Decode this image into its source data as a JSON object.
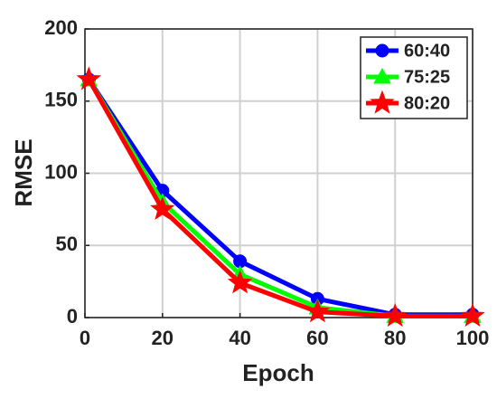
{
  "chart_data": {
    "type": "line",
    "x": [
      1,
      20,
      40,
      60,
      80,
      100
    ],
    "series": [
      {
        "name": "60:40",
        "color": "#0000ff",
        "marker": "circle",
        "values": [
          165,
          88,
          39,
          13,
          2,
          2
        ]
      },
      {
        "name": "75:25",
        "color": "#00ff00",
        "marker": "triangle",
        "values": [
          165,
          80,
          30,
          7,
          1,
          1
        ]
      },
      {
        "name": "80:20",
        "color": "#ff0000",
        "marker": "star",
        "values": [
          165,
          75,
          24,
          4,
          1,
          1
        ]
      }
    ],
    "xlabel": "Epoch",
    "ylabel": "RMSE",
    "xlim": [
      0,
      100
    ],
    "ylim": [
      0,
      200
    ],
    "xticks": [
      0,
      20,
      40,
      60,
      80,
      100
    ],
    "yticks": [
      0,
      50,
      100,
      150,
      200
    ],
    "grid": true,
    "legend": "top-right"
  }
}
